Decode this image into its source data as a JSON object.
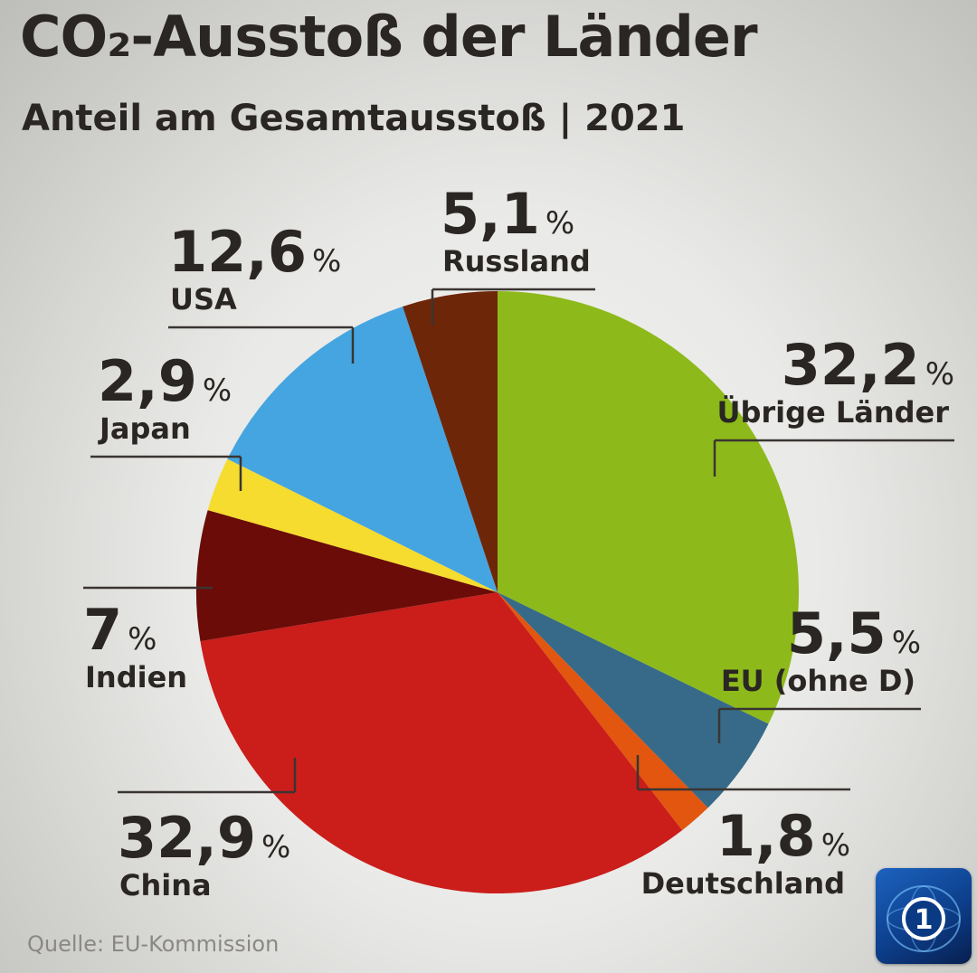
{
  "title": "CO₂-Ausstoß der Länder",
  "subtitle": "Anteil am Gesamtausstoß | 2021",
  "source": "Quelle: EU-Kommission",
  "logo_text": "1",
  "chart_data": {
    "type": "pie",
    "unit": "%",
    "start": "12 o'clock, clockwise",
    "slices": [
      {
        "label": "Übrige Länder",
        "value": 32.2,
        "display": "32,2",
        "color": "#8dba1a"
      },
      {
        "label": "EU (ohne D)",
        "value": 5.5,
        "display": "5,5",
        "color": "#376a88"
      },
      {
        "label": "Deutschland",
        "value": 1.8,
        "display": "1,8",
        "color": "#e2560f"
      },
      {
        "label": "China",
        "value": 32.9,
        "display": "32,9",
        "color": "#cb1d1a"
      },
      {
        "label": "Indien",
        "value": 7,
        "display": "7",
        "color": "#6b0c08"
      },
      {
        "label": "Japan",
        "value": 2.9,
        "display": "2,9",
        "color": "#f5dc2e"
      },
      {
        "label": "USA",
        "value": 12.6,
        "display": "12,6",
        "color": "#45a5e0"
      },
      {
        "label": "Russland",
        "value": 5.1,
        "display": "5,1",
        "color": "#6e2609"
      }
    ]
  }
}
